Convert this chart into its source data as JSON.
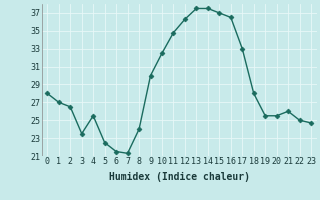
{
  "x": [
    0,
    1,
    2,
    3,
    4,
    5,
    6,
    7,
    8,
    9,
    10,
    11,
    12,
    13,
    14,
    15,
    16,
    17,
    18,
    19,
    20,
    21,
    22,
    23
  ],
  "y": [
    28,
    27,
    26.5,
    23.5,
    25.5,
    22.5,
    21.5,
    21.3,
    24,
    30,
    32.5,
    34.8,
    36.3,
    37.5,
    37.5,
    37,
    36.5,
    33,
    28,
    25.5,
    25.5,
    26,
    25,
    24.7
  ],
  "xlabel": "Humidex (Indice chaleur)",
  "xlim": [
    -0.5,
    23.5
  ],
  "ylim": [
    21,
    38
  ],
  "yticks": [
    21,
    23,
    25,
    27,
    29,
    31,
    33,
    35,
    37
  ],
  "xticks": [
    0,
    1,
    2,
    3,
    4,
    5,
    6,
    7,
    8,
    9,
    10,
    11,
    12,
    13,
    14,
    15,
    16,
    17,
    18,
    19,
    20,
    21,
    22,
    23
  ],
  "line_color": "#1a6b5e",
  "marker_color": "#1a6b5e",
  "bg_color": "#c8eaea",
  "grid_color": "#e8f8f8",
  "axis_label_fontsize": 6.5,
  "tick_fontsize": 6.0,
  "line_width": 1.0,
  "marker_size": 2.5,
  "xlabel_fontsize": 7.0
}
